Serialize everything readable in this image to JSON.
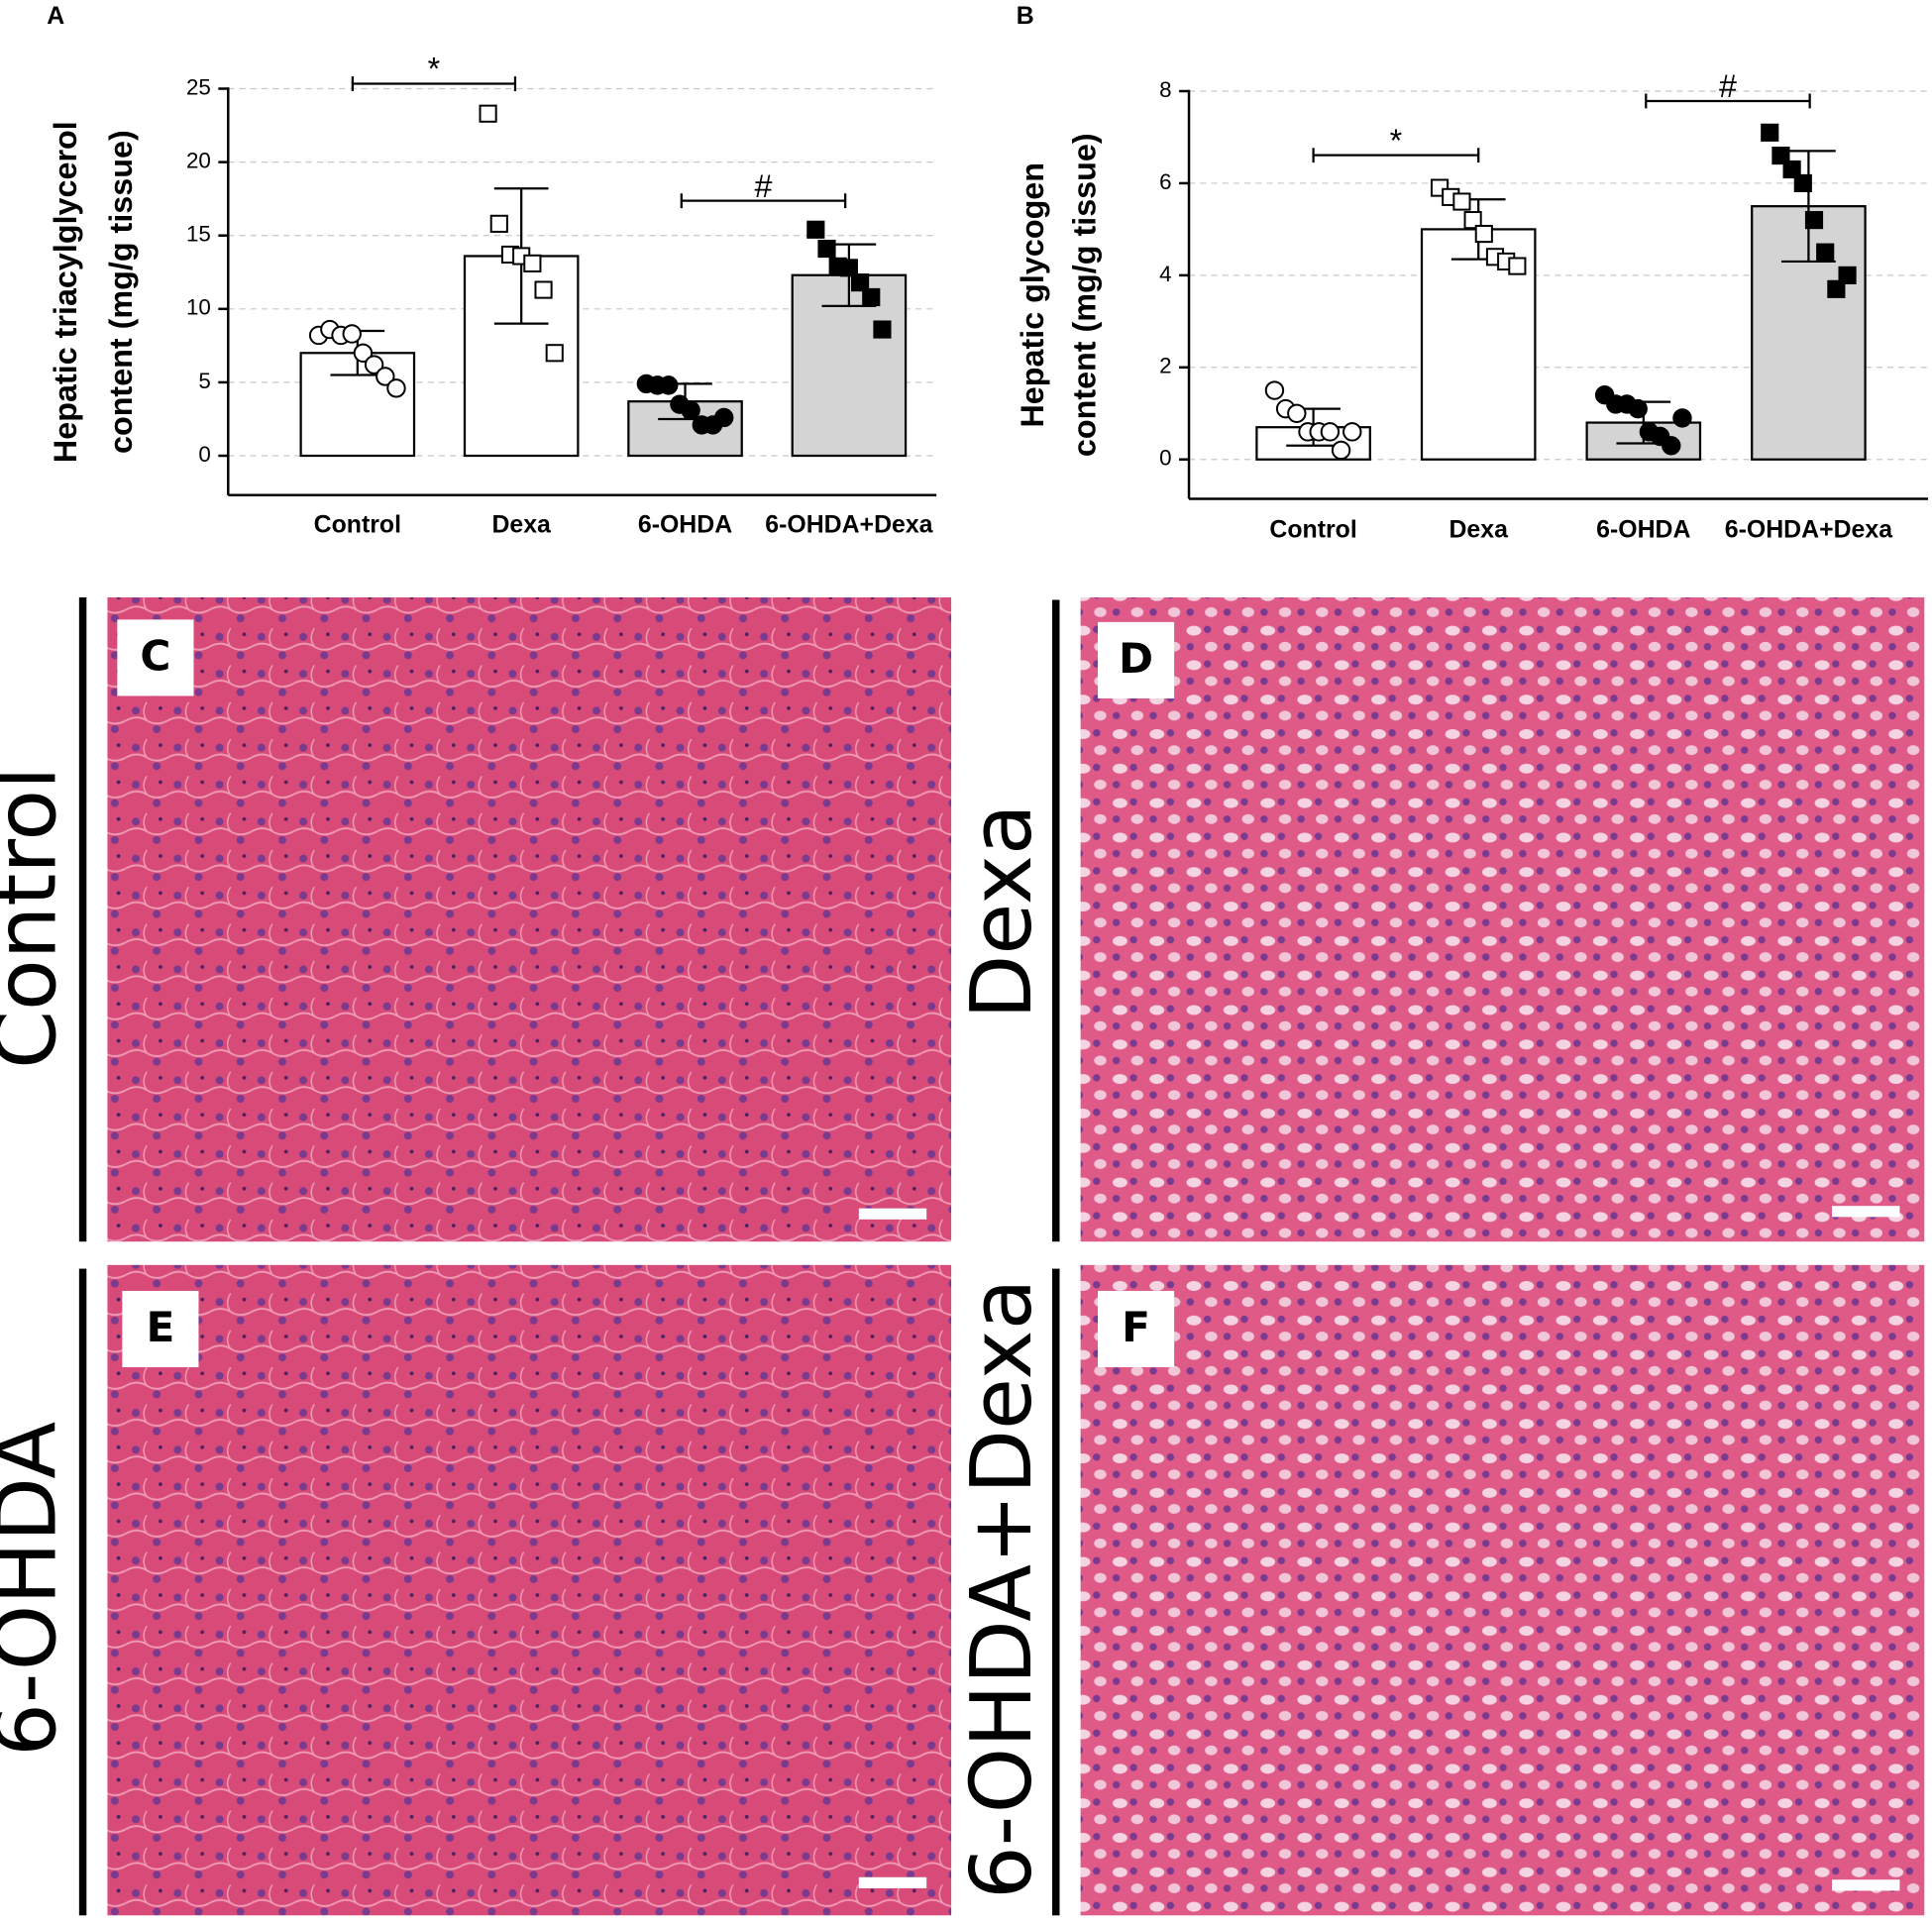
{
  "chart_data": [
    {
      "type": "bar",
      "panel": "A",
      "ylabel": [
        "Hepatic triacylglycerol",
        "content (mg/g tissue)"
      ],
      "categories": [
        "Control",
        "Dexa",
        "6-OHDA",
        "6-OHDA+Dexa"
      ],
      "values": [
        7.0,
        13.6,
        3.7,
        12.3
      ],
      "errors": [
        1.5,
        4.6,
        1.2,
        2.1
      ],
      "points": [
        [
          8.2,
          8.6,
          8.2,
          8.3,
          7.0,
          6.2,
          5.4,
          4.6
        ],
        [
          23.3,
          15.8,
          13.7,
          13.6,
          13.1,
          11.3,
          7.0
        ],
        [
          4.9,
          4.8,
          4.8,
          3.5,
          3.1,
          2.1,
          2.1,
          2.6
        ],
        [
          15.4,
          14.1,
          12.9,
          12.8,
          11.8,
          10.8,
          8.6
        ]
      ],
      "colors": [
        "#ffffff",
        "#ffffff",
        "#d4d4d4",
        "#d4d4d4"
      ],
      "markers": [
        "open-circle",
        "open-square",
        "filled-circle",
        "filled-square"
      ],
      "annotations": [
        "*",
        "#"
      ],
      "ylim": [
        0,
        25
      ],
      "yticks": [
        0,
        5,
        10,
        15,
        20,
        25
      ],
      "grid": true
    },
    {
      "type": "bar",
      "panel": "B",
      "ylabel": [
        "Hepatic glycogen",
        "content (mg/g tissue)"
      ],
      "categories": [
        "Control",
        "Dexa",
        "6-OHDA",
        "6-OHDA+Dexa"
      ],
      "values": [
        0.7,
        5.0,
        0.8,
        5.5
      ],
      "errors": [
        0.4,
        0.65,
        0.45,
        1.2
      ],
      "points": [
        [
          1.5,
          1.1,
          1.0,
          0.6,
          0.6,
          0.6,
          0.2,
          0.6
        ],
        [
          5.9,
          5.7,
          5.6,
          5.2,
          4.9,
          4.4,
          4.3,
          4.2
        ],
        [
          1.4,
          1.2,
          1.2,
          1.1,
          0.6,
          0.5,
          0.3,
          0.9
        ],
        [
          7.1,
          6.6,
          6.3,
          6.0,
          5.2,
          4.5,
          3.7,
          4.0
        ]
      ],
      "colors": [
        "#ffffff",
        "#ffffff",
        "#d4d4d4",
        "#d4d4d4"
      ],
      "markers": [
        "open-circle",
        "open-square",
        "filled-circle",
        "filled-square"
      ],
      "annotations": [
        "*",
        "#"
      ],
      "ylim": [
        0,
        8
      ],
      "yticks": [
        0,
        2,
        4,
        6,
        8
      ],
      "grid": true
    }
  ],
  "panels": [
    {
      "letter": "C",
      "group": "Control"
    },
    {
      "letter": "D",
      "group": "Dexa"
    },
    {
      "letter": "E",
      "group": "6-OHDA"
    },
    {
      "letter": "F",
      "group": "6-OHDA+Dexa"
    }
  ]
}
